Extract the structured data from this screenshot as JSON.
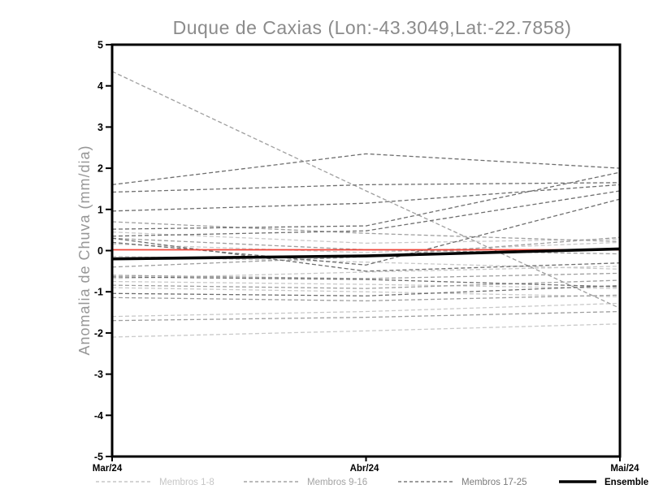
{
  "chart_data": {
    "type": "line",
    "title": "Duque de Caxias (Lon:-43.3049,Lat:-22.7858)",
    "ylabel": "Anomalia de Chuva (mm/dia)",
    "xlabel": "",
    "x_categories": [
      "Mar/24",
      "Abr/24",
      "Mai/24"
    ],
    "ylim": [
      -5,
      5
    ],
    "ytick_step": 1,
    "grid": false,
    "legend_position": "bottom",
    "colors": {
      "members_1_8": "#c9c9c9",
      "members_9_16": "#9f9f9f",
      "members_17_25": "#6e6e6e",
      "reference_zero": "#ef4439",
      "ensemble_mean": "#000000",
      "axis": "#000000",
      "title": "#8b8b8b",
      "ylabel": "#979797"
    },
    "series": [
      {
        "name": "member-01",
        "group": "Membros 1-8",
        "color": "#c9c9c9",
        "style": "dashed",
        "values": [
          0.45,
          0.18,
          0.28
        ]
      },
      {
        "name": "member-02",
        "group": "Membros 1-8",
        "color": "#c9c9c9",
        "style": "dashed",
        "values": [
          0.16,
          -0.05,
          0.2
        ]
      },
      {
        "name": "member-03",
        "group": "Membros 1-8",
        "color": "#c9c9c9",
        "style": "dashed",
        "values": [
          -0.14,
          -0.28,
          -0.45
        ]
      },
      {
        "name": "member-04",
        "group": "Membros 1-8",
        "color": "#c9c9c9",
        "style": "dashed",
        "values": [
          -0.68,
          -0.52,
          -0.38
        ]
      },
      {
        "name": "member-05",
        "group": "Membros 1-8",
        "color": "#c9c9c9",
        "style": "dashed",
        "values": [
          -0.75,
          -0.82,
          -0.92
        ]
      },
      {
        "name": "member-06",
        "group": "Membros 1-8",
        "color": "#c9c9c9",
        "style": "dashed",
        "values": [
          -0.9,
          -1.0,
          -1.12
        ]
      },
      {
        "name": "member-07",
        "group": "Membros 1-8",
        "color": "#c9c9c9",
        "style": "dashed",
        "values": [
          -1.6,
          -1.48,
          -1.28
        ]
      },
      {
        "name": "member-08",
        "group": "Membros 1-8",
        "color": "#c9c9c9",
        "style": "dashed",
        "values": [
          -2.1,
          -1.95,
          -1.78
        ]
      },
      {
        "name": "member-09",
        "group": "Membros 9-16",
        "color": "#9f9f9f",
        "style": "dashed",
        "values": [
          4.35,
          1.45,
          -1.4
        ]
      },
      {
        "name": "member-10",
        "group": "Membros 9-16",
        "color": "#9f9f9f",
        "style": "dashed",
        "values": [
          0.7,
          0.42,
          0.22
        ]
      },
      {
        "name": "member-11",
        "group": "Membros 9-16",
        "color": "#9f9f9f",
        "style": "dashed",
        "values": [
          0.3,
          0.02,
          -0.08
        ]
      },
      {
        "name": "member-12",
        "group": "Membros 9-16",
        "color": "#9f9f9f",
        "style": "dashed",
        "values": [
          -0.6,
          -0.68,
          -0.55
        ]
      },
      {
        "name": "member-13",
        "group": "Membros 9-16",
        "color": "#9f9f9f",
        "style": "dashed",
        "values": [
          -0.84,
          -0.92,
          -0.72
        ]
      },
      {
        "name": "member-14",
        "group": "Membros 9-16",
        "color": "#9f9f9f",
        "style": "dashed",
        "values": [
          -1.14,
          -1.22,
          -1.08
        ]
      },
      {
        "name": "member-15",
        "group": "Membros 9-16",
        "color": "#9f9f9f",
        "style": "dashed",
        "values": [
          -1.7,
          -1.62,
          -1.48
        ]
      },
      {
        "name": "member-16",
        "group": "Membros 9-16",
        "color": "#9f9f9f",
        "style": "dashed",
        "values": [
          -0.4,
          -0.15,
          0.32
        ]
      },
      {
        "name": "member-17",
        "group": "Membros 17-25",
        "color": "#6e6e6e",
        "style": "dashed",
        "values": [
          1.6,
          2.35,
          2.0
        ]
      },
      {
        "name": "member-18",
        "group": "Membros 17-25",
        "color": "#6e6e6e",
        "style": "dashed",
        "values": [
          1.42,
          1.6,
          1.65
        ]
      },
      {
        "name": "member-19",
        "group": "Membros 17-25",
        "color": "#6e6e6e",
        "style": "dashed",
        "values": [
          0.96,
          1.15,
          1.6
        ]
      },
      {
        "name": "member-20",
        "group": "Membros 17-25",
        "color": "#6e6e6e",
        "style": "dashed",
        "values": [
          0.52,
          0.6,
          1.9
        ]
      },
      {
        "name": "member-21",
        "group": "Membros 17-25",
        "color": "#6e6e6e",
        "style": "dashed",
        "values": [
          0.35,
          0.48,
          1.45
        ]
      },
      {
        "name": "member-22",
        "group": "Membros 17-25",
        "color": "#6e6e6e",
        "style": "dashed",
        "values": [
          0.3,
          -0.5,
          -0.3
        ]
      },
      {
        "name": "member-23",
        "group": "Membros 17-25",
        "color": "#6e6e6e",
        "style": "dashed",
        "values": [
          0.2,
          -0.35,
          1.25
        ]
      },
      {
        "name": "member-24",
        "group": "Membros 17-25",
        "color": "#6e6e6e",
        "style": "dashed",
        "values": [
          -1.04,
          -1.1,
          -0.85
        ]
      },
      {
        "name": "member-25",
        "group": "Membros 17-25",
        "color": "#6e6e6e",
        "style": "dashed",
        "values": [
          -0.64,
          -0.7,
          -0.88
        ]
      },
      {
        "name": "reference-zero",
        "group": "reference",
        "color": "#ef4439",
        "style": "solid",
        "width": 1.7,
        "values": [
          0.02,
          0.02,
          0.02
        ]
      },
      {
        "name": "ensemble-mean",
        "group": "mean",
        "color": "#000000",
        "style": "solid",
        "width": 3.6,
        "values": [
          -0.2,
          -0.13,
          0.04
        ]
      }
    ],
    "yticks": [
      "5",
      "4",
      "3",
      "2",
      "1",
      "0",
      "-1",
      "-2",
      "-3",
      "-4",
      "-5"
    ],
    "legend": [
      {
        "label": "Membros 1-8",
        "color": "#c6c6c6",
        "style": "dashed"
      },
      {
        "label": "Membros 9-16",
        "color": "#a3a3a3",
        "style": "dashed"
      },
      {
        "label": "Membros 17-25",
        "color": "#7c7c7c",
        "style": "dashed"
      },
      {
        "label": "Ensemble Mean",
        "color": "#000000",
        "style": "solid"
      }
    ]
  }
}
